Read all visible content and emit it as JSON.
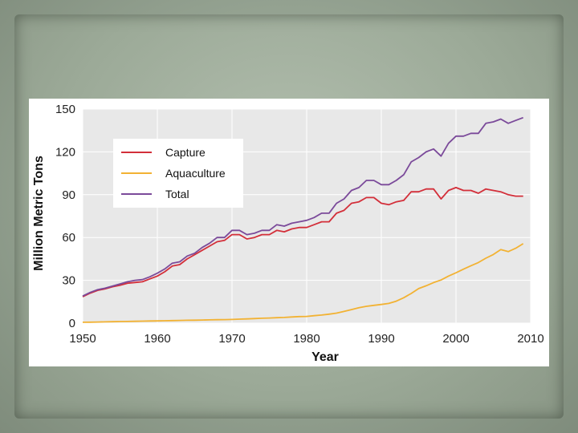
{
  "chart_data": {
    "type": "line",
    "xlabel": "Year",
    "ylabel": "Million Metric Tons",
    "xlim": [
      1950,
      2010
    ],
    "ylim": [
      0,
      150
    ],
    "xticks": [
      1950,
      1960,
      1970,
      1980,
      1990,
      2000,
      2010
    ],
    "yticks": [
      0,
      30,
      60,
      90,
      120,
      150
    ],
    "grid": true,
    "legend_position": "top-left",
    "x": [
      1950,
      1951,
      1952,
      1953,
      1954,
      1955,
      1956,
      1957,
      1958,
      1959,
      1960,
      1961,
      1962,
      1963,
      1964,
      1965,
      1966,
      1967,
      1968,
      1969,
      1970,
      1971,
      1972,
      1973,
      1974,
      1975,
      1976,
      1977,
      1978,
      1979,
      1980,
      1981,
      1982,
      1983,
      1984,
      1985,
      1986,
      1987,
      1988,
      1989,
      1990,
      1991,
      1992,
      1993,
      1994,
      1995,
      1996,
      1997,
      1998,
      1999,
      2000,
      2001,
      2002,
      2003,
      2004,
      2005,
      2006,
      2007,
      2008,
      2009
    ],
    "series": [
      {
        "name": "Capture",
        "color": "#d32f3a",
        "values": [
          18.5,
          21,
          23,
          24,
          25.5,
          26.5,
          28,
          28.5,
          29,
          31,
          33,
          36,
          40,
          41,
          45,
          48,
          51,
          54,
          57,
          58,
          62,
          62,
          59,
          60,
          62,
          62,
          65,
          64,
          66,
          67,
          67,
          69,
          71,
          71,
          77,
          79,
          84,
          85,
          88,
          88,
          84,
          83,
          85,
          86,
          92,
          92,
          94,
          94,
          87,
          93,
          95,
          93,
          93,
          91,
          94,
          93,
          92,
          90,
          89,
          89
        ]
      },
      {
        "name": "Aquaculture",
        "color": "#f2b233",
        "values": [
          0.6,
          0.7,
          0.8,
          0.9,
          1.0,
          1.1,
          1.2,
          1.3,
          1.4,
          1.5,
          1.6,
          1.7,
          1.8,
          1.9,
          2.0,
          2.1,
          2.2,
          2.3,
          2.4,
          2.5,
          2.6,
          2.8,
          3.0,
          3.2,
          3.4,
          3.6,
          3.8,
          4.0,
          4.3,
          4.6,
          4.7,
          5.2,
          5.7,
          6.3,
          7.0,
          8.2,
          9.5,
          10.8,
          11.8,
          12.5,
          13.1,
          13.8,
          15.4,
          17.8,
          20.8,
          24.2,
          26.2,
          28.4,
          30.2,
          33.0,
          35.3,
          37.8,
          40.2,
          42.5,
          45.5,
          48.1,
          51.5,
          50.1,
          52.5,
          55.7
        ]
      },
      {
        "name": "Total",
        "color": "#7b4a9a",
        "values": [
          19,
          21.5,
          23.5,
          24.5,
          26,
          27.5,
          29,
          30,
          30.5,
          32.5,
          35,
          38,
          42,
          43,
          47,
          49,
          53,
          56,
          60,
          60,
          65,
          65,
          62,
          63,
          65,
          65,
          69,
          68,
          70,
          71,
          72,
          74,
          77,
          77,
          84,
          87,
          93,
          95,
          100,
          100,
          97,
          97,
          100,
          104,
          113,
          116,
          120,
          122,
          117,
          126,
          131,
          131,
          133,
          133,
          140,
          141,
          143,
          140,
          142,
          144
        ]
      }
    ]
  }
}
